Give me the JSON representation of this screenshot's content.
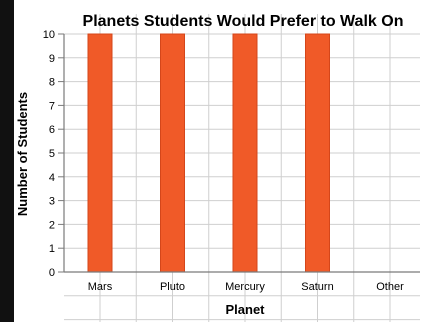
{
  "chart_data": {
    "type": "bar",
    "title": "Planets Students Would Prefer to Walk On",
    "xlabel": "Planet",
    "ylabel": "Number of Students",
    "categories": [
      "Mars",
      "Pluto",
      "Mercury",
      "Saturn",
      "Other"
    ],
    "values": [
      10,
      10,
      10,
      10,
      0
    ],
    "ylim": [
      0,
      10
    ],
    "yticks": [
      "0",
      "1",
      "2",
      "3",
      "4",
      "5",
      "6",
      "7",
      "8",
      "9",
      "10"
    ],
    "grid": true,
    "legend": "none",
    "colors": {
      "bar": "#f05a28",
      "bar_stroke": "#d4461a",
      "grid": "#cfcfcf",
      "axis": "#7a7a7a",
      "frame": "#111111"
    }
  }
}
